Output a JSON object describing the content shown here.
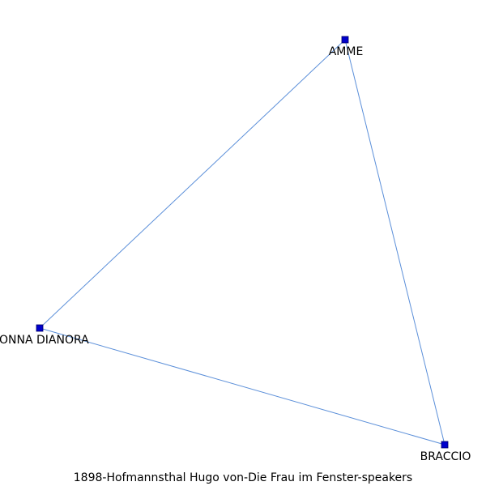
{
  "caption": "1898-Hofmannsthal_Hugo_von-Die_Frau_im_Fenster-speakers",
  "colors": {
    "node_fill": "#0000cc",
    "node_stroke": "#000066",
    "edge": "#5b8fd9",
    "label": "#000000",
    "background": "#ffffff"
  },
  "nodes": [
    {
      "id": "amme",
      "label": "AMME"
    },
    {
      "id": "donna",
      "label": "DONNA DIANORA"
    },
    {
      "id": "braccio",
      "label": "BRACCIO"
    }
  ],
  "edges": [
    {
      "source": "amme",
      "target": "donna"
    },
    {
      "source": "amme",
      "target": "braccio"
    },
    {
      "source": "donna",
      "target": "braccio"
    }
  ]
}
